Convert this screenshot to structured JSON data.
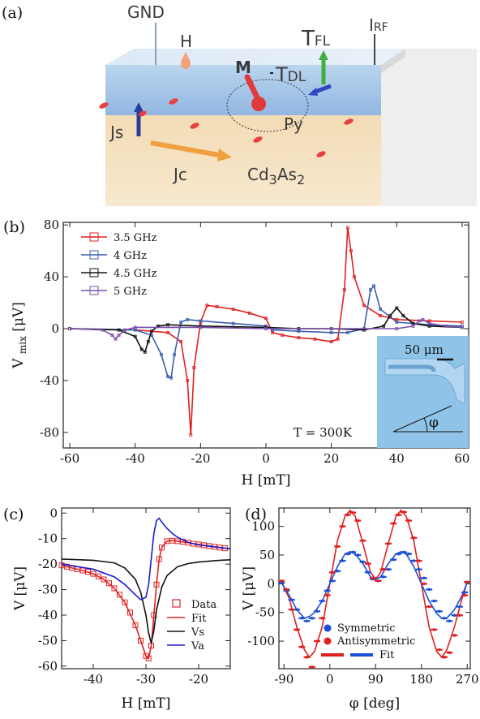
{
  "panels": {
    "a": {
      "label": "(a)",
      "labels": {
        "gnd": "GND",
        "h": "H",
        "m": "M",
        "tdl": "T",
        "tdl_sub": "DL",
        "tfl": "T",
        "tfl_sub": "FL",
        "irf": "I",
        "irf_sub": "RF",
        "js": "Js",
        "py": "Py",
        "jc": "Jc",
        "cd3as2": "Cd",
        "cd3as2_sub1": "3",
        "cd3as2_mid": "As",
        "cd3as2_sub2": "2"
      }
    },
    "b": {
      "label": "(b)"
    },
    "c": {
      "label": "(c)"
    },
    "d": {
      "label": "(d)"
    }
  },
  "chart_data": [
    {
      "panel": "b",
      "type": "line",
      "xlabel": "H [mT]",
      "ylabel": "V",
      "ylabel_sub": "mix",
      "ylabel_unit": "[μV]",
      "xlim": [
        -62,
        62
      ],
      "ylim": [
        -92,
        82
      ],
      "xticks": [
        -60,
        -40,
        -20,
        0,
        20,
        40,
        60
      ],
      "yticks": [
        -80,
        -40,
        0,
        40,
        80
      ],
      "annotation": "T = 300K",
      "inset": {
        "scale_label": "50 μm",
        "angle_label": "φ"
      },
      "legend_position": "top-left",
      "colors": {
        "3.5 GHz": "#e02020",
        "4 GHz": "#3a5fb0",
        "4.5 GHz": "#111111",
        "5 GHz": "#7a4fa8"
      },
      "series": [
        {
          "name": "3.5 GHz",
          "x": [
            -60,
            -40,
            -30,
            -26,
            -24,
            -23,
            -22,
            -20,
            -18,
            -15,
            -10,
            -5,
            0,
            2,
            5,
            10,
            15,
            20,
            22,
            24,
            25,
            26,
            27,
            30,
            35,
            40,
            50,
            60
          ],
          "y": [
            0,
            -1,
            -3,
            -10,
            -40,
            -82,
            -30,
            5,
            18,
            17,
            15,
            12,
            8,
            -3,
            -5,
            -7,
            -8,
            -10,
            -8,
            30,
            78,
            60,
            40,
            18,
            10,
            7,
            6,
            5
          ]
        },
        {
          "name": "4 GHz",
          "x": [
            -60,
            -40,
            -35,
            -32,
            -30,
            -29,
            -28,
            -26,
            -24,
            -20,
            -10,
            0,
            2,
            10,
            20,
            25,
            30,
            32,
            33,
            35,
            40,
            50,
            60
          ],
          "y": [
            0,
            -1,
            -5,
            -20,
            -37,
            -38,
            -20,
            5,
            7,
            6,
            4,
            2,
            -1,
            -2,
            -3,
            -3,
            0,
            30,
            33,
            15,
            5,
            3,
            2
          ]
        },
        {
          "name": "4.5 GHz",
          "x": [
            -60,
            -45,
            -40,
            -38,
            -37,
            -36,
            -35,
            -33,
            -30,
            -20,
            0,
            10,
            20,
            30,
            36,
            38,
            40,
            42,
            45,
            50,
            60
          ],
          "y": [
            0,
            -1,
            -6,
            -16,
            -18,
            -10,
            -2,
            2,
            3,
            2,
            1,
            0,
            0,
            -1,
            2,
            10,
            16,
            10,
            4,
            2,
            1
          ]
        },
        {
          "name": "5 GHz",
          "x": [
            -60,
            -50,
            -47,
            -46,
            -45,
            -43,
            -40,
            -20,
            0,
            20,
            40,
            45,
            47,
            48,
            50,
            55,
            60
          ],
          "y": [
            0,
            -1,
            -5,
            -8,
            -5,
            -1,
            1,
            1,
            0,
            0,
            0,
            2,
            6,
            7,
            4,
            2,
            1
          ]
        }
      ]
    },
    {
      "panel": "c",
      "type": "line",
      "xlabel": "H [mT]",
      "ylabel": "V [μV]",
      "xlim": [
        -46,
        -14
      ],
      "ylim": [
        -61,
        2
      ],
      "xticks": [
        -40,
        -30,
        -20
      ],
      "yticks": [
        0,
        -10,
        -20,
        -30,
        -40,
        -50,
        -60
      ],
      "legend_position": "bottom-right",
      "colors": {
        "Data": "#e02020",
        "Fit": "#e02020",
        "Vs": "#111111",
        "Va": "#1a1ad0"
      },
      "series": [
        {
          "name": "Data",
          "x": [
            -46,
            -45,
            -44,
            -43,
            -42,
            -41,
            -40,
            -39,
            -38,
            -37,
            -36,
            -35,
            -34,
            -33,
            -32,
            -31,
            -30,
            -29.5,
            -29,
            -28.5,
            -28,
            -27.5,
            -27,
            -26,
            -25,
            -24,
            -23,
            -22,
            -21,
            -20,
            -19,
            -18,
            -17,
            -16,
            -15
          ],
          "y": [
            -20.5,
            -21,
            -21.5,
            -22,
            -22.5,
            -23,
            -23.8,
            -24.8,
            -26,
            -27.5,
            -29.5,
            -32,
            -35,
            -39,
            -44,
            -50,
            -56,
            -57,
            -52,
            -40,
            -28,
            -18,
            -13.5,
            -11,
            -10.8,
            -11,
            -11.2,
            -11.6,
            -12,
            -12.3,
            -12.6,
            -12.9,
            -13.2,
            -13.5,
            -13.8
          ]
        },
        {
          "name": "Fit",
          "x": [
            -46,
            -44,
            -42,
            -40,
            -38,
            -36,
            -34,
            -32,
            -31,
            -30,
            -29.5,
            -29,
            -28.5,
            -28,
            -27.5,
            -27,
            -26,
            -25,
            -24,
            -22,
            -20,
            -18,
            -16,
            -14
          ],
          "y": [
            -20.5,
            -21.5,
            -22.5,
            -23.8,
            -26,
            -29.5,
            -35,
            -44,
            -50,
            -56,
            -57,
            -52,
            -40,
            -28,
            -18,
            -13.5,
            -11,
            -10.8,
            -11,
            -11.6,
            -12.3,
            -12.9,
            -13.5,
            -14
          ]
        },
        {
          "name": "Vs",
          "x": [
            -46,
            -40,
            -36,
            -34,
            -32,
            -31,
            -30,
            -29.5,
            -29,
            -28.5,
            -28,
            -27,
            -26,
            -24,
            -22,
            -20,
            -16,
            -14
          ],
          "y": [
            -18,
            -18.5,
            -19.5,
            -21.5,
            -26,
            -31,
            -40,
            -47,
            -51,
            -46,
            -38,
            -29,
            -24.5,
            -21,
            -19.8,
            -19.2,
            -18.5,
            -18.3
          ]
        },
        {
          "name": "Va",
          "x": [
            -46,
            -40,
            -36,
            -34,
            -32,
            -31,
            -30,
            -29.5,
            -29,
            -28.5,
            -28,
            -27.5,
            -27,
            -26,
            -25,
            -24,
            -22,
            -20,
            -18,
            -16,
            -14
          ],
          "y": [
            -20,
            -22,
            -25,
            -28,
            -32,
            -34,
            -33,
            -28,
            -18,
            -8,
            -3,
            -2,
            -3.5,
            -6,
            -8,
            -9.5,
            -11.5,
            -12.5,
            -13,
            -13.5,
            -14
          ]
        }
      ]
    },
    {
      "panel": "d",
      "type": "scatter",
      "xlabel": "φ [deg]",
      "ylabel": "V [μV]",
      "xlim": [
        -100,
        276
      ],
      "ylim": [
        -148,
        132
      ],
      "xticks": [
        -90,
        0,
        90,
        180,
        270
      ],
      "yticks": [
        100,
        50,
        0,
        -50,
        -100
      ],
      "legend_position": "bottom-center",
      "colors": {
        "Symmetric": "#1a4fd8",
        "Antisymmetric": "#e02020",
        "Fit": "#e02020",
        "Fit2": "#1a4fd8"
      },
      "legend_fit_label": "Fit",
      "series": [
        {
          "name": "Symmetric",
          "x": [
            -95,
            -85,
            -75,
            -65,
            -55,
            -45,
            -35,
            -25,
            -15,
            -5,
            5,
            15,
            25,
            35,
            45,
            55,
            65,
            75,
            85,
            95,
            105,
            115,
            125,
            135,
            145,
            155,
            165,
            175,
            185,
            195,
            205,
            215,
            225,
            235,
            245,
            255,
            265,
            270
          ],
          "y": [
            2,
            -12,
            -28,
            -45,
            -60,
            -65,
            -60,
            -48,
            -30,
            -12,
            5,
            22,
            40,
            52,
            55,
            50,
            38,
            20,
            8,
            5,
            12,
            25,
            42,
            52,
            55,
            52,
            40,
            25,
            10,
            -10,
            -30,
            -48,
            -60,
            -65,
            -55,
            -40,
            -15,
            3
          ]
        },
        {
          "name": "Antisymmetric",
          "x": [
            -95,
            -85,
            -75,
            -65,
            -55,
            -45,
            -35,
            -25,
            -15,
            -5,
            5,
            15,
            25,
            35,
            45,
            55,
            65,
            75,
            85,
            95,
            105,
            115,
            125,
            135,
            145,
            155,
            165,
            175,
            185,
            195,
            205,
            215,
            225,
            235,
            245,
            255,
            265,
            270
          ],
          "y": [
            5,
            -10,
            -45,
            -80,
            -110,
            -128,
            -145,
            -100,
            -60,
            -20,
            20,
            65,
            100,
            120,
            124,
            110,
            75,
            35,
            10,
            5,
            25,
            70,
            105,
            120,
            125,
            110,
            80,
            40,
            0,
            -40,
            -80,
            -115,
            -128,
            -120,
            -90,
            -55,
            -20,
            3
          ]
        }
      ],
      "fits": [
        {
          "color": "#e02020",
          "x": [
            -95,
            -80,
            -65,
            -50,
            -40,
            -30,
            -15,
            0,
            15,
            30,
            40,
            50,
            65,
            80,
            90,
            100,
            115,
            130,
            140,
            150,
            165,
            180,
            195,
            210,
            220,
            230,
            245,
            260,
            270
          ],
          "y": [
            3,
            -25,
            -75,
            -115,
            -128,
            -118,
            -75,
            0,
            75,
            118,
            128,
            118,
            70,
            20,
            8,
            20,
            70,
            118,
            128,
            118,
            75,
            0,
            -75,
            -118,
            -128,
            -115,
            -75,
            -25,
            3
          ]
        },
        {
          "color": "#1a4fd8",
          "x": [
            -95,
            -80,
            -65,
            -50,
            -40,
            -30,
            -15,
            0,
            15,
            30,
            40,
            50,
            65,
            80,
            90,
            100,
            115,
            130,
            140,
            150,
            165,
            180,
            195,
            210,
            220,
            230,
            245,
            260,
            270
          ],
          "y": [
            2,
            -20,
            -45,
            -60,
            -57,
            -50,
            -30,
            0,
            30,
            52,
            56,
            52,
            35,
            12,
            8,
            12,
            35,
            52,
            56,
            52,
            30,
            0,
            -30,
            -52,
            -60,
            -60,
            -45,
            -20,
            2
          ]
        }
      ]
    }
  ]
}
